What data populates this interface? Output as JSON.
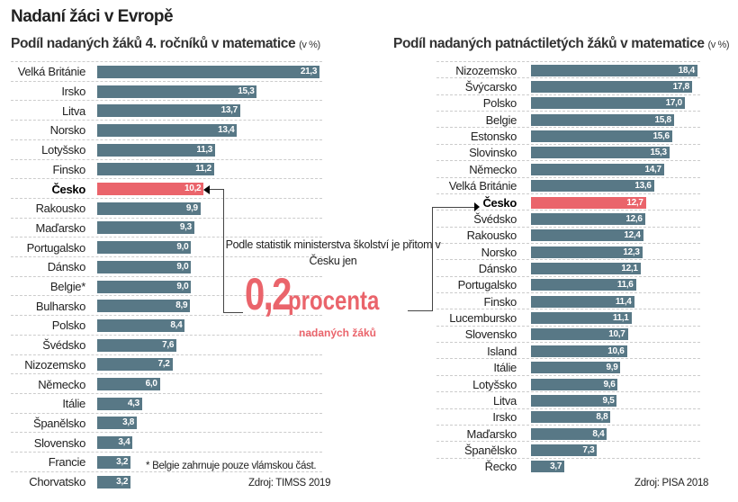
{
  "title": "Nadaní žáci v Evropě",
  "highlight_color": "#ea646b",
  "bar_color": "#587886",
  "callout": {
    "text": "Podle statistik ministerstva školství je přitom v Česku jen",
    "number": "0,2",
    "unit": "procenta",
    "sub": "nadaných žáků"
  },
  "chart_data": [
    {
      "type": "bar",
      "orientation": "horizontal",
      "title": "Podíl nadaných žáků 4. ročníků v matematice",
      "unit": "(v %)",
      "highlight": "Česko",
      "categories": [
        "Velká Británie",
        "Irsko",
        "Litva",
        "Norsko",
        "Lotyšsko",
        "Finsko",
        "Česko",
        "Rakousko",
        "Maďarsko",
        "Portugalsko",
        "Dánsko",
        "Belgie*",
        "Bulharsko",
        "Polsko",
        "Švédsko",
        "Nizozemsko",
        "Německo",
        "Itálie",
        "Španělsko",
        "Slovensko",
        "Francie",
        "Chorvatsko"
      ],
      "values": [
        21.3,
        15.3,
        13.7,
        13.4,
        11.3,
        11.2,
        10.2,
        9.9,
        9.3,
        9.0,
        9.0,
        9.0,
        8.9,
        8.4,
        7.6,
        7.2,
        6.0,
        4.3,
        3.8,
        3.4,
        3.2,
        3.2
      ],
      "labels": [
        "21,3",
        "15,3",
        "13,7",
        "13,4",
        "11,3",
        "11,2",
        "10,2",
        "9,9",
        "9,3",
        "9,0",
        "9,0",
        "9,0",
        "8,9",
        "8,4",
        "7,6",
        "7,2",
        "6,0",
        "4,3",
        "3,8",
        "3,4",
        "3,2",
        "3,2"
      ],
      "footnote": "* Belgie zahrnuje pouze vlámskou část.",
      "source": "Zdroj: TIMSS 2019"
    },
    {
      "type": "bar",
      "orientation": "horizontal",
      "title": "Podíl nadaných patnáctiletých žáků v matematice",
      "unit": "(v %)",
      "highlight": "Česko",
      "categories": [
        "Nizozemsko",
        "Švýcarsko",
        "Polsko",
        "Belgie",
        "Estonsko",
        "Slovinsko",
        "Německo",
        "Velká Británie",
        "Česko",
        "Švédsko",
        "Rakousko",
        "Norsko",
        "Dánsko",
        "Portugalsko",
        "Finsko",
        "Lucembursko",
        "Slovensko",
        "Island",
        "Itálie",
        "Lotyšsko",
        "Litva",
        "Irsko",
        "Maďarsko",
        "Španělsko",
        "Řecko"
      ],
      "values": [
        18.4,
        17.8,
        17.0,
        15.8,
        15.6,
        15.3,
        14.7,
        13.6,
        12.7,
        12.6,
        12.4,
        12.3,
        12.1,
        11.6,
        11.4,
        11.1,
        10.7,
        10.6,
        9.9,
        9.6,
        9.5,
        8.8,
        8.4,
        7.3,
        3.7
      ],
      "labels": [
        "18,4",
        "17,8",
        "17,0",
        "15,8",
        "15,6",
        "15,3",
        "14,7",
        "13,6",
        "12,7",
        "12,6",
        "12,4",
        "12,3",
        "12,1",
        "11,6",
        "11,4",
        "11,1",
        "10,7",
        "10,6",
        "9,9",
        "9,6",
        "9,5",
        "8,8",
        "8,4",
        "7,3",
        "3,7"
      ],
      "source": "Zdroj: PISA 2018"
    }
  ]
}
